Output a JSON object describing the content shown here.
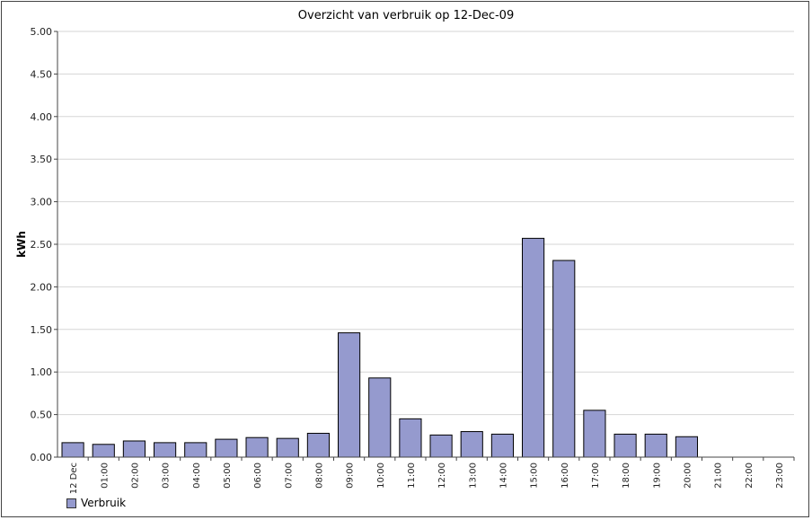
{
  "chart_data": {
    "type": "bar",
    "title": "Overzicht van verbruik op 12-Dec-09",
    "xlabel": "",
    "ylabel": "kWh",
    "ylim": [
      0,
      5
    ],
    "yticks": [
      "0.00",
      "0.50",
      "1.00",
      "1.50",
      "2.00",
      "2.50",
      "3.00",
      "3.50",
      "4.00",
      "4.50",
      "5.00"
    ],
    "categories": [
      "12 Dec",
      "01:00",
      "02:00",
      "03:00",
      "04:00",
      "05:00",
      "06:00",
      "07:00",
      "08:00",
      "09:00",
      "10:00",
      "11:00",
      "12:00",
      "13:00",
      "14:00",
      "15:00",
      "16:00",
      "17:00",
      "18:00",
      "19:00",
      "20:00",
      "21:00",
      "22:00",
      "23:00"
    ],
    "series": [
      {
        "name": "Verbruik",
        "color": "#959ace",
        "values": [
          0.17,
          0.15,
          0.19,
          0.17,
          0.17,
          0.21,
          0.23,
          0.22,
          0.28,
          1.46,
          0.93,
          0.45,
          0.26,
          0.3,
          0.27,
          2.57,
          2.31,
          0.55,
          0.27,
          0.27,
          0.24,
          null,
          null,
          null
        ]
      }
    ],
    "grid": true,
    "legend_position": "bottom-left"
  }
}
